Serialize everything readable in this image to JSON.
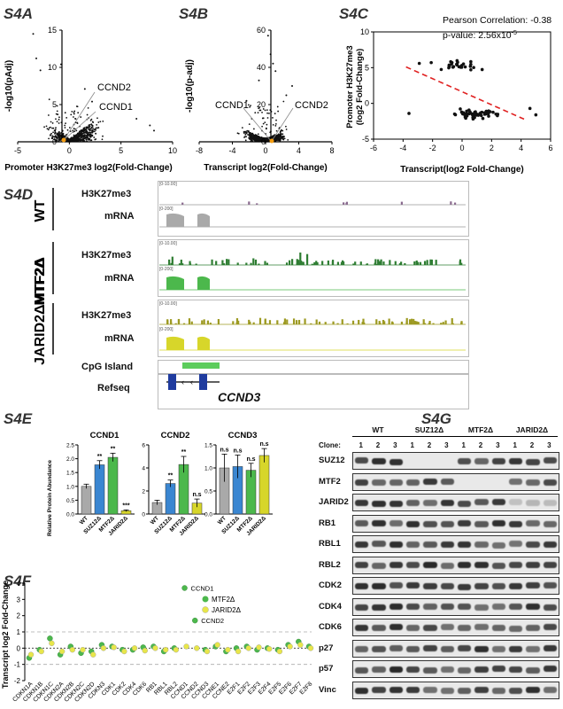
{
  "panels": {
    "s4a": "S4A",
    "s4b": "S4B",
    "s4c": "S4C",
    "s4d": "S4D",
    "s4e": "S4E",
    "s4f": "S4F",
    "s4g": "S4G"
  },
  "colors": {
    "wt": "#a9a9a9",
    "suz12": "#3a86d1",
    "mtf2": "#4cb84c",
    "jarid2": "#d7d62a",
    "h3k27_mtf2": "#2e7d32",
    "h3k27_jarid2": "#9d9a22",
    "cpg": "#5ccc5c",
    "refseq": "#1f3b9e"
  },
  "chart_data": [
    {
      "id": "s4a",
      "type": "scatter",
      "xlabel": "Promoter H3K27me3 log2(Fold-Change)",
      "ylabel": "-log10(pAdj)",
      "xlim": [
        -5,
        10
      ],
      "ylim": [
        0,
        15
      ],
      "xticks": [
        "-5",
        "0",
        "5",
        "10"
      ],
      "yticks": [
        "0",
        "5",
        "10",
        "15"
      ],
      "annotations": [
        "CCND2",
        "CCND1"
      ]
    },
    {
      "id": "s4b",
      "type": "scatter",
      "xlabel": "Transcript log2(Fold-Change)",
      "ylabel": "-log10(p-adj)",
      "xlim": [
        -8,
        8
      ],
      "ylim": [
        0,
        60
      ],
      "xticks": [
        "-8",
        "-4",
        "0",
        "4",
        "8"
      ],
      "yticks": [
        "0",
        "20",
        "40",
        "60"
      ],
      "annotations": [
        "CCND1",
        "CCND2"
      ]
    },
    {
      "id": "s4c",
      "type": "scatter",
      "xlabel": "Transcript(log2 Fold-Change)",
      "ylabel_line1": "Promoter H3K27me3",
      "ylabel_line2": "(log2 Fold-Change)",
      "xlim": [
        -6,
        6
      ],
      "ylim": [
        -5,
        10
      ],
      "xticks": [
        "-6",
        "-4",
        "-2",
        "0",
        "2",
        "4",
        "6"
      ],
      "yticks": [
        "-5",
        "0",
        "5",
        "10"
      ],
      "stats_line1": "Pearson Correlation: -0.38",
      "stats_line2": "p-value: 2.56x10",
      "stats_exp": "-5",
      "trend": [
        [
          -3.8,
          5.1
        ],
        [
          4.2,
          -2.2
        ]
      ]
    },
    {
      "id": "s4e",
      "type": "bar",
      "ylabel": "Relative Protein Abundance",
      "categories": [
        "WT",
        "SUZ12Δ",
        "MTF2Δ",
        "JARID2Δ"
      ],
      "subplots": [
        {
          "title": "CCND1",
          "ylim": [
            0,
            2.5
          ],
          "yticks": [
            "0.0",
            "0.5",
            "1.0",
            "1.5",
            "2.0",
            "2.5"
          ],
          "values": [
            1.0,
            1.78,
            2.05,
            0.12
          ],
          "errors": [
            0.08,
            0.15,
            0.15,
            0.03
          ],
          "sig": [
            "",
            "**",
            "**",
            "***"
          ]
        },
        {
          "title": "CCND2",
          "ylim": [
            0,
            6
          ],
          "yticks": [
            "0",
            "2",
            "4",
            "6"
          ],
          "values": [
            1.0,
            2.65,
            4.3,
            0.95
          ],
          "errors": [
            0.2,
            0.3,
            0.7,
            0.35
          ],
          "sig": [
            "",
            "**",
            "**",
            "n.s"
          ]
        },
        {
          "title": "CCND3",
          "ylim": [
            0,
            1.5
          ],
          "yticks": [
            "0.0",
            "0.5",
            "1.0",
            "1.5"
          ],
          "values": [
            1.0,
            1.03,
            0.95,
            1.27
          ],
          "errors": [
            0.3,
            0.25,
            0.15,
            0.15
          ],
          "sig": [
            "n.s",
            "n.s",
            "n.s",
            "n.s"
          ]
        }
      ]
    },
    {
      "id": "s4f",
      "type": "scatter",
      "ylabel": "Transcript log2 Fold-Change",
      "ylim": [
        -2,
        4
      ],
      "yticks": [
        "-2",
        "-1",
        "0",
        "1",
        "2",
        "3",
        "4"
      ],
      "legend": [
        "MTF2Δ",
        "JARID2Δ"
      ],
      "annotations": [
        "CCND1",
        "CCND2"
      ],
      "categories": [
        "CDKN1A",
        "CDKN1B",
        "CDKN1C",
        "CDKN2A",
        "CDKN2B",
        "CDKN2C",
        "CDKN2D",
        "CDKN3",
        "CDK1",
        "CDK2",
        "CDK4",
        "CDK6",
        "RB1",
        "RBL1",
        "RBL2",
        "CCND1",
        "CCND2",
        "CCND3",
        "CCNE1",
        "CCNE2",
        "E2F1",
        "E2F2",
        "E2F3",
        "E2F4",
        "E2F5",
        "E2F6",
        "E2F7",
        "E2F8"
      ],
      "series": [
        {
          "name": "MTF2Δ",
          "values": [
            -0.6,
            -0.1,
            0.6,
            -0.4,
            0.1,
            -0.3,
            -0.2,
            0.2,
            0.1,
            -0.1,
            -0.1,
            0.05,
            0.1,
            -0.2,
            0.0,
            3.7,
            1.7,
            -0.1,
            0.1,
            -0.2,
            0.0,
            0.1,
            -0.1,
            0.0,
            -0.1,
            0.2,
            0.4,
            0.1
          ]
        },
        {
          "name": "JARID2Δ",
          "values": [
            -0.4,
            -0.2,
            0.3,
            -0.2,
            -0.1,
            -0.1,
            -0.4,
            0.0,
            0.05,
            -0.2,
            0.0,
            -0.15,
            0.0,
            -0.1,
            -0.1,
            0.1,
            0.0,
            -0.2,
            0.2,
            -0.1,
            -0.2,
            0.0,
            0.05,
            -0.05,
            -0.2,
            0.1,
            0.2,
            0.0
          ]
        }
      ]
    }
  ],
  "s4d": {
    "groups": [
      {
        "name": "WT",
        "rows": [
          "H3K27me3",
          "mRNA"
        ],
        "scales": [
          "[0-10.00]",
          "[0-200]"
        ]
      },
      {
        "name": "MTF2Δ",
        "rows": [
          "H3K27me3",
          "mRNA"
        ],
        "scales": [
          "[0-10.00]",
          "[0-200]"
        ]
      },
      {
        "name": "JARID2ΔMTF2Δ",
        "rows": [
          "H3K27me3",
          "mRNA"
        ],
        "scales": [
          "[0-10.00]",
          "[0-200]"
        ]
      }
    ],
    "cpg_label": "CpG Island",
    "refseq_label": "Refseq",
    "gene": "CCND3"
  },
  "s4g": {
    "groups": [
      "WT",
      "SUZ12Δ",
      "MTF2Δ",
      "JARID2Δ"
    ],
    "clone_label": "Clone:",
    "clones": [
      "1",
      "2",
      "3",
      "1",
      "2",
      "3",
      "1",
      "2",
      "3",
      "1",
      "2",
      "3"
    ],
    "proteins": [
      "SUZ12",
      "MTF2",
      "JARID2",
      "RB1",
      "RBL1",
      "RBL2",
      "CDK2",
      "CDK4",
      "CDK6",
      "p27",
      "p57",
      "Vinc"
    ]
  }
}
